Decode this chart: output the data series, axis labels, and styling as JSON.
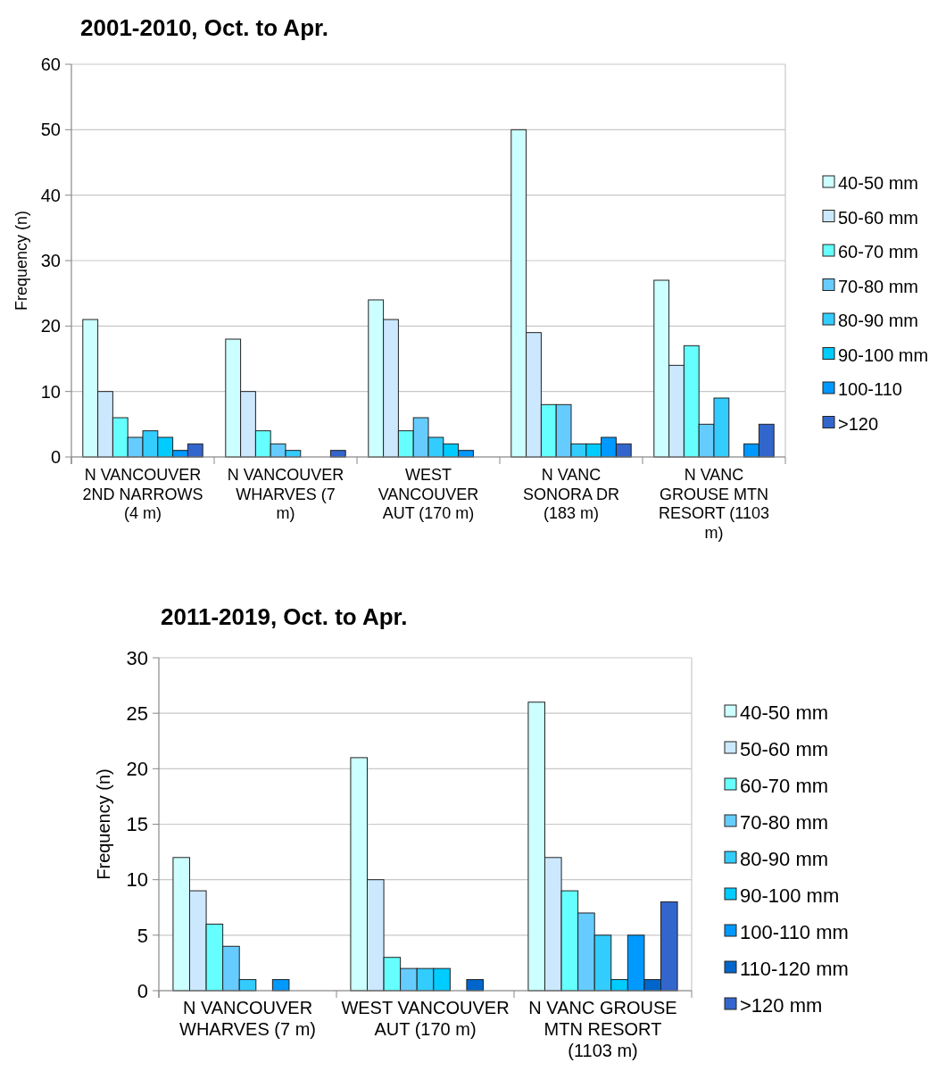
{
  "chart_data": [
    {
      "type": "bar",
      "title": "2001-2010,  Oct. to Apr.",
      "ylabel": "Frequency (n)",
      "categories": [
        "N VANCOUVER 2ND NARROWS (4 m)",
        "N VANCOUVER WHARVES (7 m)",
        "WEST VANCOUVER AUT (170 m)",
        "N VANC SONORA DR (183 m)",
        "N VANC GROUSE MTN RESORT (1103 m)"
      ],
      "series": [
        {
          "name": "40-50 mm",
          "color": "#ccffff",
          "values": [
            21,
            18,
            24,
            50,
            27
          ]
        },
        {
          "name": "50-60 mm",
          "color": "#cce8ff",
          "values": [
            10,
            10,
            21,
            19,
            14
          ]
        },
        {
          "name": "60-70 mm",
          "color": "#66ffff",
          "values": [
            6,
            4,
            4,
            8,
            17
          ]
        },
        {
          "name": "70-80 mm",
          "color": "#66ccff",
          "values": [
            3,
            2,
            6,
            8,
            5
          ]
        },
        {
          "name": "80-90 mm",
          "color": "#33ccff",
          "values": [
            4,
            1,
            3,
            2,
            9
          ]
        },
        {
          "name": "90-100 mm",
          "color": "#00ccff",
          "values": [
            3,
            null,
            2,
            2,
            null
          ]
        },
        {
          "name": "100-110",
          "color": "#0099ff",
          "values": [
            1,
            null,
            1,
            3,
            2
          ]
        },
        {
          "name": ">120",
          "color": "#3366cc",
          "values": [
            2,
            1,
            null,
            2,
            5
          ]
        }
      ],
      "ylim": [
        0,
        60
      ],
      "yticks": [
        0,
        10,
        20,
        30,
        40,
        50,
        60
      ],
      "grid": "y",
      "legend": "right"
    },
    {
      "type": "bar",
      "title": "2011-2019, Oct. to Apr.",
      "ylabel": "Frequency (n)",
      "categories": [
        "N VANCOUVER WHARVES (7 m)",
        "WEST VANCOUVER AUT (170 m)",
        "N VANC GROUSE MTN RESORT (1103 m)"
      ],
      "series": [
        {
          "name": "40-50 mm",
          "color": "#ccffff",
          "values": [
            12,
            21,
            26
          ]
        },
        {
          "name": "50-60 mm",
          "color": "#cce8ff",
          "values": [
            9,
            10,
            12
          ]
        },
        {
          "name": "60-70 mm",
          "color": "#66ffff",
          "values": [
            6,
            3,
            9
          ]
        },
        {
          "name": "70-80 mm",
          "color": "#66ccff",
          "values": [
            4,
            2,
            7
          ]
        },
        {
          "name": "80-90 mm",
          "color": "#33ccff",
          "values": [
            1,
            2,
            5
          ]
        },
        {
          "name": "90-100 mm",
          "color": "#00ccff",
          "values": [
            null,
            2,
            1
          ]
        },
        {
          "name": "100-110 mm",
          "color": "#0099ff",
          "values": [
            1,
            null,
            5
          ]
        },
        {
          "name": "110-120 mm",
          "color": "#0066cc",
          "values": [
            null,
            1,
            1
          ]
        },
        {
          "name": ">120 mm",
          "color": "#3366cc",
          "values": [
            null,
            null,
            8
          ]
        }
      ],
      "ylim": [
        0,
        30
      ],
      "yticks": [
        0,
        5,
        10,
        15,
        20,
        25,
        30
      ],
      "grid": "y",
      "legend": "right"
    }
  ]
}
